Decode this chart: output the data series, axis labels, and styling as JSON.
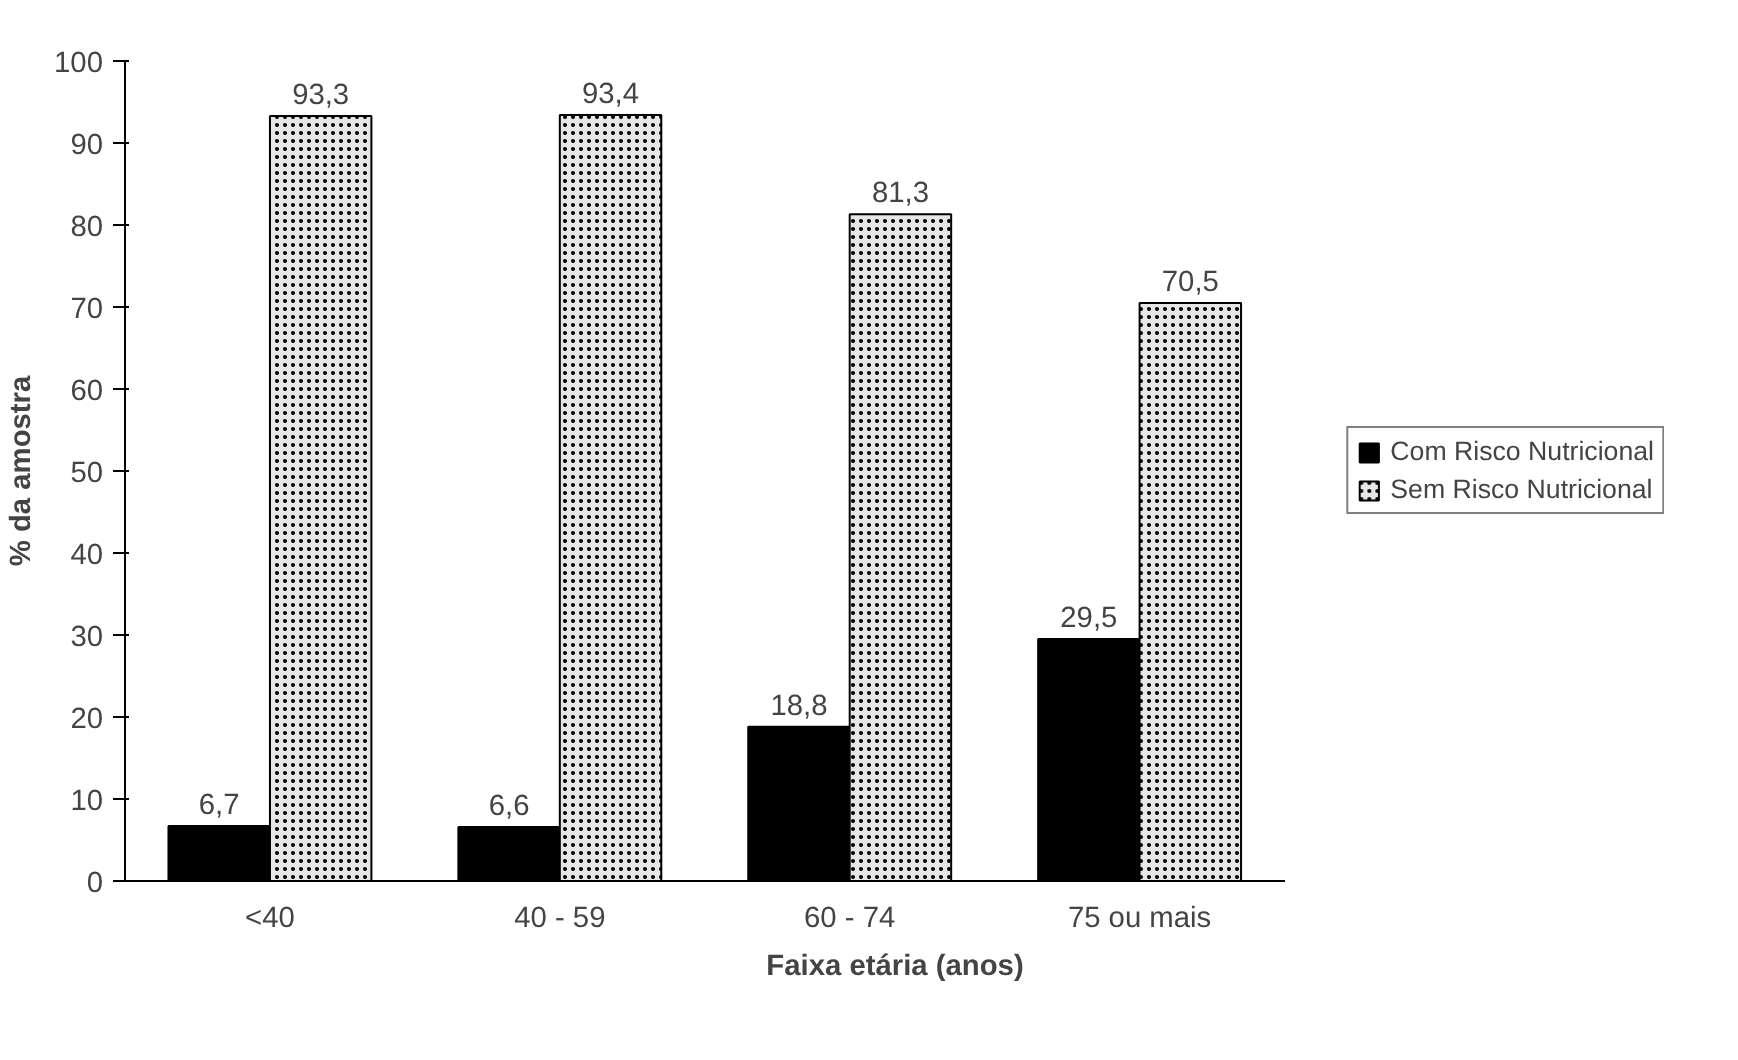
{
  "chart_data": {
    "type": "bar",
    "xlabel": "Faixa etária (anos)",
    "ylabel": "% da amostra",
    "categories": [
      "<40",
      "40 - 59",
      "60 - 74",
      "75 ou mais"
    ],
    "series": [
      {
        "name": "Com Risco Nutricional",
        "color": "#000000",
        "values": [
          6.7,
          6.6,
          18.8,
          29.5
        ],
        "value_labels": [
          "6,7",
          "6,6",
          "18,8",
          "29,5"
        ]
      },
      {
        "name": "Sem Risco Nutricional",
        "color": "#e6e6e6",
        "values": [
          93.3,
          93.4,
          81.3,
          70.5
        ],
        "value_labels": [
          "93,3",
          "93,4",
          "81,3",
          "70,5"
        ]
      }
    ],
    "ylim": [
      0,
      100
    ],
    "yticks": [
      0,
      10,
      20,
      30,
      40,
      50,
      60,
      70,
      80,
      90,
      100
    ],
    "grid": false,
    "legend": "right"
  }
}
